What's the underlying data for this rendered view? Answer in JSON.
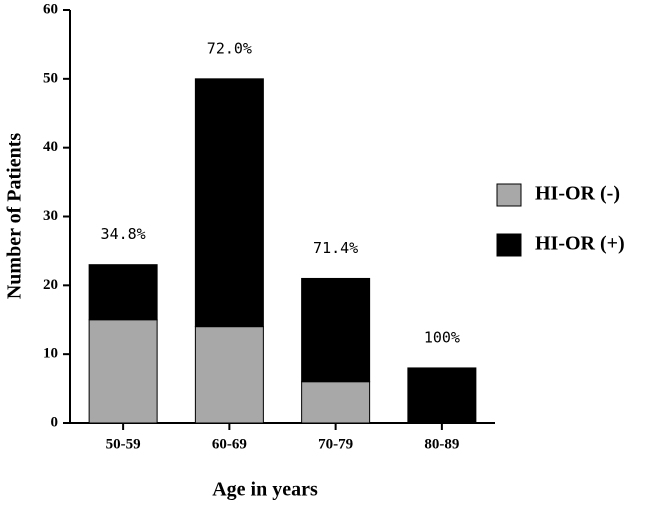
{
  "chart_data": {
    "type": "stacked_bar",
    "x_label": "Age in years",
    "y_label": "Number of Patients",
    "categories": [
      "50-59",
      "60-69",
      "70-79",
      "80-89"
    ],
    "series": [
      {
        "name": "HI-OR (-)",
        "color": "#a8a8a8",
        "values": [
          15,
          14,
          6,
          0
        ]
      },
      {
        "name": "HI-OR (+)",
        "color": "#000000",
        "values": [
          8,
          36,
          15,
          8
        ]
      }
    ],
    "annotations": [
      "34.8%",
      "72.0%",
      "71.4%",
      "100%"
    ],
    "ylim": [
      0,
      60
    ],
    "yticks": [
      0,
      10,
      20,
      30,
      40,
      50,
      60
    ],
    "legend": "right"
  }
}
